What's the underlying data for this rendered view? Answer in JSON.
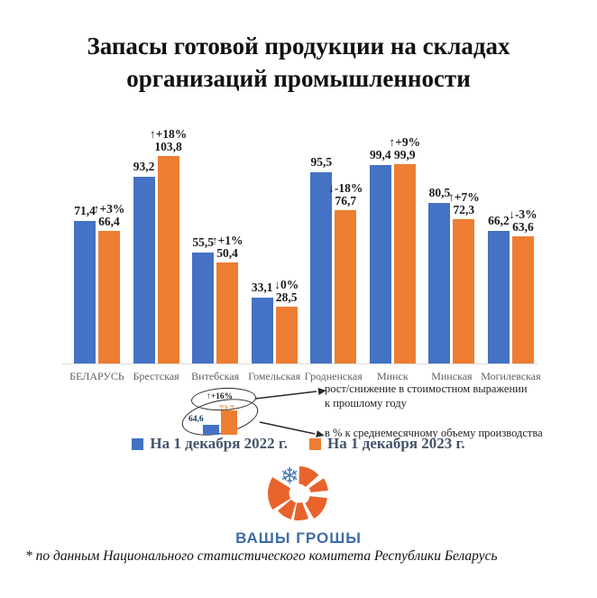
{
  "title": "Запасы готовой продукции на складах организаций промышленности",
  "chart_data": {
    "type": "bar",
    "categories": [
      "БЕЛАРУСЬ",
      "Брестская",
      "Витебская",
      "Гомельская",
      "Гродненская",
      "Минск",
      "Минская",
      "Могилевская"
    ],
    "series": [
      {
        "name": "На 1 декабря 2022 г.",
        "color": "#4472C4",
        "values": [
          71.4,
          93.2,
          55.5,
          33.1,
          95.5,
          99.4,
          80.5,
          66.2
        ]
      },
      {
        "name": "На 1 декабря 2023 г.",
        "color": "#ED7D31",
        "values": [
          66.4,
          103.8,
          50.4,
          28.5,
          76.7,
          99.9,
          72.3,
          63.6
        ]
      }
    ],
    "change_labels": [
      "↑+3%",
      "↑+18%",
      "↑+1%",
      "↓0%",
      "↓-18%",
      "↑+9%",
      "↑+7%",
      "↓-3%"
    ],
    "value_unit": "в % к среднемесячному объему производства",
    "ylim": [
      0,
      110
    ],
    "grid": false,
    "legend_position": "bottom"
  },
  "annotation": {
    "sample": {
      "percent": "↑+16%",
      "value_2023": "72,7",
      "value_2022": "64,6"
    },
    "growth_line1": "рост/снижение в стоимостном выражении",
    "growth_line2": "к прошлому году",
    "percent_line": "в % к среднемесячному объему производства"
  },
  "legend": [
    {
      "label": "На 1 декабря 2022 г.",
      "color": "#4472C4"
    },
    {
      "label": "На 1 декабря 2023 г.",
      "color": "#ED7D31"
    }
  ],
  "logo": {
    "text": "ВАШЫ ГРОШЫ",
    "orange": "#E8632C",
    "blue": "#3F6CA6"
  },
  "footnote": "* по данным Национального статистического комитета Республики Беларусь",
  "colors": {
    "bar_2022": "#4472C4",
    "bar_2023": "#ED7D31",
    "legend_text": "#44546A",
    "axis_label": "#5F5F5F"
  }
}
